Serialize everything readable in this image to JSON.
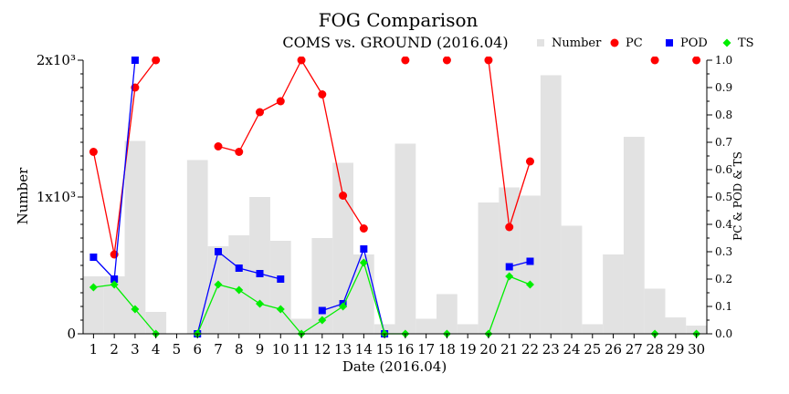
{
  "chart_data": {
    "type": "bar+line",
    "title": "FOG Comparison",
    "subtitle": "COMS vs. GROUND (2016.04)",
    "xlabel": "Date (2016.04)",
    "ylabel_left": "Number",
    "ylabel_right": "PC & POD & TS",
    "categories": [
      "1",
      "2",
      "3",
      "4",
      "5",
      "6",
      "7",
      "8",
      "9",
      "10",
      "11",
      "12",
      "13",
      "14",
      "15",
      "16",
      "17",
      "18",
      "19",
      "20",
      "21",
      "22",
      "23",
      "24",
      "25",
      "26",
      "27",
      "28",
      "29",
      "30"
    ],
    "left_yticks": [
      {
        "value": 0,
        "label": "0"
      },
      {
        "value": 1000,
        "label": "1x10³"
      },
      {
        "value": 2000,
        "label": "2x10³"
      }
    ],
    "left_ylim": [
      0,
      2000
    ],
    "right_yticks": [
      "0.0",
      "0.1",
      "0.2",
      "0.3",
      "0.4",
      "0.5",
      "0.6",
      "0.7",
      "0.8",
      "0.9",
      "1.0"
    ],
    "right_ylim": [
      0,
      1
    ],
    "legend": {
      "position": "top-right",
      "items": [
        {
          "label": "Number",
          "marker": "square",
          "color": "#e2e2e2"
        },
        {
          "label": "PC",
          "marker": "circle",
          "color": "#ff0000"
        },
        {
          "label": "POD",
          "marker": "square",
          "color": "#0000ff"
        },
        {
          "label": "TS",
          "marker": "diamond",
          "color": "#00ee00"
        }
      ]
    },
    "bars": {
      "name": "Number",
      "color": "#e2e2e2",
      "values": [
        420,
        420,
        1410,
        160,
        0,
        1270,
        640,
        720,
        1000,
        680,
        110,
        700,
        1250,
        580,
        70,
        1390,
        110,
        290,
        70,
        960,
        1070,
        1010,
        1890,
        790,
        70,
        580,
        1440,
        330,
        120,
        60
      ]
    },
    "series": [
      {
        "name": "PC",
        "color": "#ff0000",
        "marker": "circle",
        "values": [
          0.665,
          0.29,
          0.9,
          1.0,
          null,
          null,
          0.685,
          0.665,
          0.81,
          0.85,
          1.0,
          0.875,
          0.505,
          0.385,
          null,
          1.0,
          null,
          1.0,
          null,
          1.0,
          0.39,
          0.63,
          null,
          null,
          null,
          null,
          null,
          1.0,
          null,
          1.0
        ]
      },
      {
        "name": "POD",
        "color": "#0000ff",
        "marker": "square",
        "values": [
          0.28,
          0.2,
          1.0,
          null,
          null,
          0.0,
          0.3,
          0.24,
          0.22,
          0.2,
          null,
          0.085,
          0.11,
          0.31,
          0.0,
          null,
          null,
          null,
          null,
          null,
          0.245,
          0.265,
          null,
          null,
          null,
          null,
          null,
          null,
          null,
          null
        ]
      },
      {
        "name": "TS",
        "color": "#00ee00",
        "marker": "diamond",
        "values": [
          0.17,
          0.18,
          0.09,
          0.0,
          null,
          0.0,
          0.18,
          0.16,
          0.11,
          0.09,
          0.0,
          0.05,
          0.1,
          0.26,
          0.0,
          0.0,
          null,
          0.0,
          null,
          0.0,
          0.21,
          0.18,
          null,
          null,
          null,
          null,
          null,
          0.0,
          null,
          0.0
        ]
      }
    ]
  }
}
